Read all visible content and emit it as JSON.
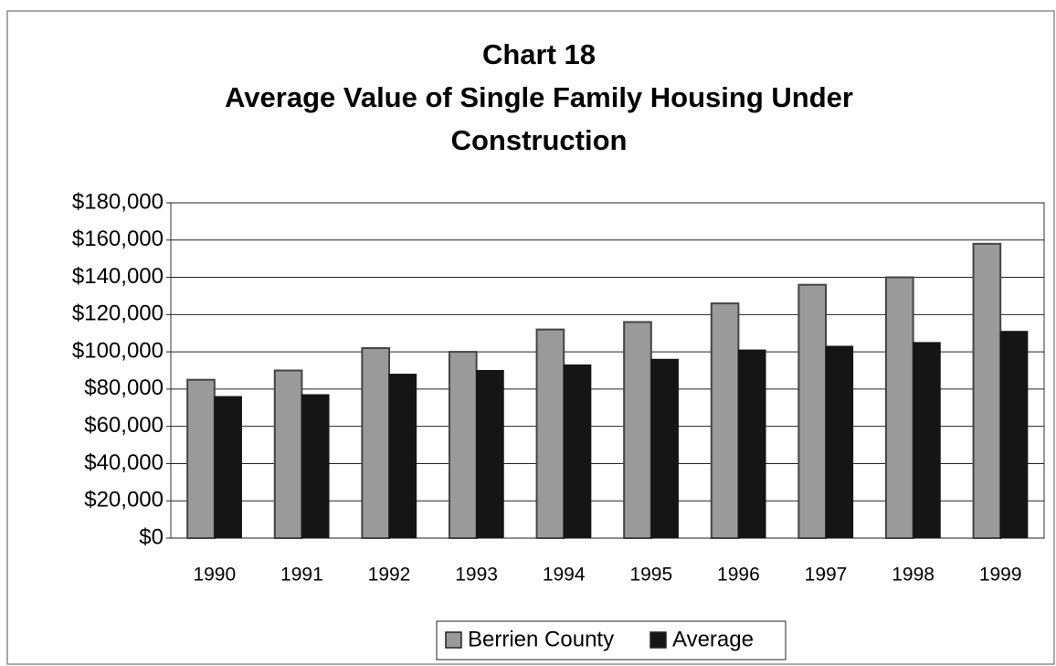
{
  "chart_data": {
    "type": "bar",
    "title": "Chart 18",
    "subtitle": "Average Value of Single Family Housing Under Construction",
    "categories": [
      "1990",
      "1991",
      "1992",
      "1993",
      "1994",
      "1995",
      "1996",
      "1997",
      "1998",
      "1999"
    ],
    "series": [
      {
        "name": "Berrien County",
        "color": "#9a9a9a",
        "values": [
          85000,
          90000,
          102000,
          100000,
          112000,
          116000,
          126000,
          136000,
          140000,
          158000
        ]
      },
      {
        "name": "Average",
        "color": "#151515",
        "values": [
          76000,
          77000,
          88000,
          90000,
          93000,
          96000,
          101000,
          103000,
          105000,
          111000
        ]
      }
    ],
    "ylim": [
      0,
      180000
    ],
    "yticks": [
      {
        "value": 0,
        "label": "$0"
      },
      {
        "value": 20000,
        "label": "$20,000"
      },
      {
        "value": 40000,
        "label": "$40,000"
      },
      {
        "value": 60000,
        "label": "$60,000"
      },
      {
        "value": 80000,
        "label": "$80,000"
      },
      {
        "value": 100000,
        "label": "$100,000"
      },
      {
        "value": 120000,
        "label": "$120,000"
      },
      {
        "value": 140000,
        "label": "$140,000"
      },
      {
        "value": 160000,
        "label": "$160,000"
      },
      {
        "value": 180000,
        "label": "$180,000"
      }
    ],
    "grid": true,
    "legend": "bottom"
  }
}
